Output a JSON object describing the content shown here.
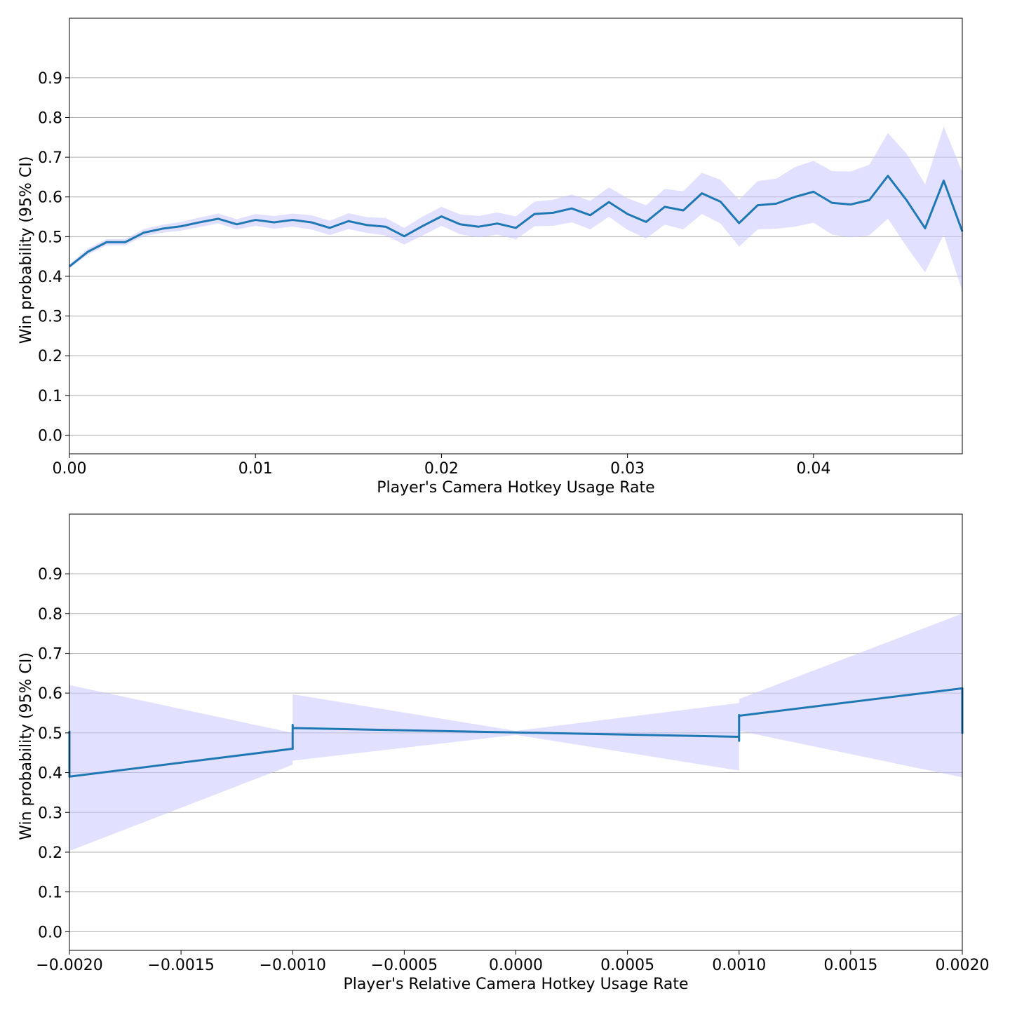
{
  "colors": {
    "line": "#1f77b4",
    "band": "#c8c8ff",
    "grid": "#b0b0b0",
    "axis": "#000000"
  },
  "chart_data": [
    {
      "type": "line",
      "xlabel": "Player's Camera Hotkey Usage Rate",
      "ylabel": "Win probability (95% CI)",
      "xlim": [
        0.0,
        0.048
      ],
      "ylim": [
        -0.047,
        1.05
      ],
      "xticks": [
        0.0,
        0.01,
        0.02,
        0.03,
        0.04
      ],
      "xtick_labels": [
        "0.00",
        "0.01",
        "0.02",
        "0.03",
        "0.04"
      ],
      "yticks": [
        0.0,
        0.1,
        0.2,
        0.3,
        0.4,
        0.5,
        0.6,
        0.7,
        0.8,
        0.9
      ],
      "ytick_labels": [
        "0.0",
        "0.1",
        "0.2",
        "0.3",
        "0.4",
        "0.5",
        "0.6",
        "0.7",
        "0.8",
        "0.9"
      ],
      "grid": "horizontal",
      "series": [
        {
          "x": [
            0.0,
            0.001,
            0.002,
            0.003,
            0.004,
            0.005,
            0.006,
            0.007,
            0.008,
            0.009,
            0.01,
            0.011,
            0.012,
            0.013,
            0.014,
            0.015,
            0.016,
            0.017,
            0.018,
            0.019,
            0.02,
            0.021,
            0.022,
            0.023,
            0.024,
            0.025,
            0.026,
            0.027,
            0.028,
            0.029,
            0.03,
            0.031,
            0.032,
            0.033,
            0.034,
            0.035,
            0.036,
            0.037,
            0.038,
            0.039,
            0.04,
            0.041,
            0.042,
            0.043,
            0.044,
            0.045,
            0.046,
            0.047,
            0.048
          ],
          "y": [
            0.425,
            0.462,
            0.486,
            0.486,
            0.51,
            0.52,
            0.526,
            0.536,
            0.545,
            0.531,
            0.542,
            0.536,
            0.542,
            0.536,
            0.522,
            0.539,
            0.529,
            0.525,
            0.501,
            0.527,
            0.551,
            0.531,
            0.525,
            0.533,
            0.522,
            0.557,
            0.56,
            0.571,
            0.554,
            0.587,
            0.557,
            0.537,
            0.575,
            0.566,
            0.609,
            0.588,
            0.534,
            0.579,
            0.583,
            0.6,
            0.613,
            0.585,
            0.581,
            0.592,
            0.653,
            0.592,
            0.521,
            0.641,
            0.513
          ],
          "lower": [
            0.42,
            0.455,
            0.478,
            0.478,
            0.501,
            0.51,
            0.515,
            0.524,
            0.533,
            0.518,
            0.527,
            0.52,
            0.525,
            0.518,
            0.504,
            0.519,
            0.509,
            0.503,
            0.48,
            0.503,
            0.527,
            0.506,
            0.498,
            0.505,
            0.493,
            0.526,
            0.527,
            0.536,
            0.518,
            0.55,
            0.517,
            0.495,
            0.53,
            0.518,
            0.557,
            0.533,
            0.475,
            0.518,
            0.52,
            0.525,
            0.535,
            0.505,
            0.498,
            0.503,
            0.545,
            0.475,
            0.41,
            0.505,
            0.363
          ],
          "upper": [
            0.43,
            0.47,
            0.494,
            0.494,
            0.519,
            0.53,
            0.537,
            0.548,
            0.558,
            0.544,
            0.557,
            0.552,
            0.558,
            0.554,
            0.54,
            0.559,
            0.549,
            0.547,
            0.522,
            0.551,
            0.575,
            0.556,
            0.552,
            0.561,
            0.551,
            0.588,
            0.593,
            0.606,
            0.59,
            0.624,
            0.597,
            0.579,
            0.62,
            0.614,
            0.661,
            0.643,
            0.593,
            0.64,
            0.646,
            0.675,
            0.691,
            0.665,
            0.664,
            0.681,
            0.761,
            0.709,
            0.632,
            0.777,
            0.663
          ]
        }
      ]
    },
    {
      "type": "line",
      "xlabel": "Player's Relative Camera Hotkey Usage Rate",
      "ylabel": "Win probability (95% CI)",
      "xlim": [
        -0.002,
        0.002
      ],
      "ylim": [
        -0.047,
        1.05
      ],
      "xticks": [
        -0.002,
        -0.0015,
        -0.001,
        -0.0005,
        0.0,
        0.0005,
        0.001,
        0.0015,
        0.002
      ],
      "xtick_labels": [
        "−0.0020",
        "−0.0015",
        "−0.0010",
        "−0.0005",
        "0.0000",
        "0.0005",
        "0.0010",
        "0.0015",
        "0.0020"
      ],
      "yticks": [
        0.0,
        0.1,
        0.2,
        0.3,
        0.4,
        0.5,
        0.6,
        0.7,
        0.8,
        0.9
      ],
      "ytick_labels": [
        "0.0",
        "0.1",
        "0.2",
        "0.3",
        "0.4",
        "0.5",
        "0.6",
        "0.7",
        "0.8",
        "0.9"
      ],
      "grid": "horizontal",
      "series": [
        {
          "x": [
            -0.002,
            -0.002,
            -0.002,
            -0.001,
            -0.001,
            -0.001,
            -0.001,
            0.001,
            0.001,
            0.001,
            0.001,
            0.002,
            0.002,
            0.002
          ],
          "y": [
            0.505,
            0.43,
            0.39,
            0.46,
            0.52,
            0.51,
            0.512,
            0.49,
            0.48,
            0.545,
            0.543,
            0.612,
            0.5,
            0.498
          ],
          "band": [
            [
              -0.002,
              0.203,
              0.62
            ],
            [
              -0.001,
              0.42,
              0.5
            ],
            [
              -0.001,
              0.43,
              0.597
            ],
            [
              0.0,
              0.495,
              0.505
            ],
            [
              0.001,
              0.405,
              0.575
            ],
            [
              0.001,
              0.505,
              0.585
            ],
            [
              0.002,
              0.388,
              0.8
            ]
          ]
        }
      ]
    }
  ]
}
